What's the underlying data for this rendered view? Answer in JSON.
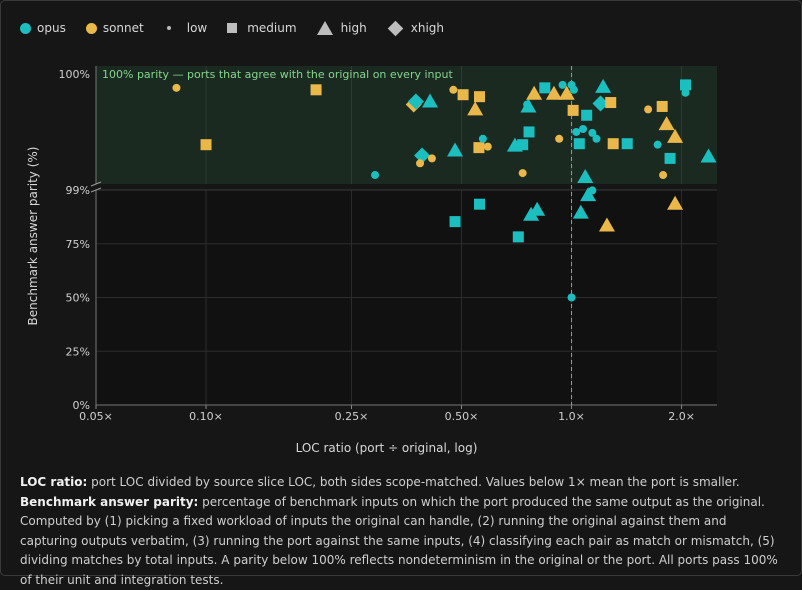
{
  "legend": {
    "items": [
      {
        "label": "opus",
        "icon": "circle-icon",
        "color": "#1bbfbf"
      },
      {
        "label": "sonnet",
        "icon": "circle-icon",
        "color": "#eab84a"
      },
      {
        "label": "low",
        "icon": "small-dot-icon"
      },
      {
        "label": "medium",
        "icon": "square-icon"
      },
      {
        "label": "high",
        "icon": "triangle-icon"
      },
      {
        "label": "xhigh",
        "icon": "diamond-icon"
      }
    ]
  },
  "caption": {
    "loc_term": "LOC ratio:",
    "loc_text": "port LOC divided by source slice LOC, both sides scope-matched. Values below 1× mean the port is smaller.",
    "parity_term": "Benchmark answer parity:",
    "parity_text": "percentage of benchmark inputs on which the port produced the same output as the original. Computed by (1) picking a fixed workload of inputs the original can handle, (2) running the original against them and capturing outputs verbatim, (3) running the port against the same inputs, (4) classifying each pair as match or mismatch, (5) dividing matches by total inputs. A parity below 100% reflects nondeterminism in the original or the port. All ports pass 100% of their unit and integration tests."
  },
  "chart_data": {
    "type": "scatter",
    "xlabel": "LOC ratio (port ÷ original, log)",
    "ylabel": "Benchmark answer parity (%)",
    "x_scale": "log",
    "xlim": [
      0.05,
      2.5
    ],
    "x_ticks": [
      0.05,
      0.1,
      0.25,
      0.5,
      1.0,
      2.0
    ],
    "x_tick_labels": [
      "0.05×",
      "0.10×",
      "0.25×",
      "0.50×",
      "1.0×",
      "2.0×"
    ],
    "y_ticks_lower": [
      "0%",
      "25%",
      "50%",
      "75%",
      "99%"
    ],
    "y_ticks_upper": [
      "100%"
    ],
    "reference_x": 1.0,
    "band_label": "100% parity — ports that agree with the original on every input",
    "grid": true,
    "colors": {
      "opus": "#1bbfbf",
      "sonnet": "#eab84a"
    },
    "parity_100_points": [
      {
        "model": "sonnet",
        "effort": "low",
        "x": 0.083,
        "jitter": 0.08
      },
      {
        "model": "sonnet",
        "effort": "medium",
        "x": 0.2,
        "jitter": 0.1
      },
      {
        "model": "sonnet",
        "effort": "medium",
        "x": 0.1,
        "jitter": 0.66
      },
      {
        "model": "opus",
        "effort": "low",
        "x": 0.29,
        "jitter": 0.97
      },
      {
        "model": "sonnet",
        "effort": "xhigh",
        "x": 0.37,
        "jitter": 0.25
      },
      {
        "model": "opus",
        "effort": "xhigh",
        "x": 0.375,
        "jitter": 0.22
      },
      {
        "model": "opus",
        "effort": "high",
        "x": 0.41,
        "jitter": 0.22
      },
      {
        "model": "opus",
        "effort": "xhigh",
        "x": 0.39,
        "jitter": 0.77
      },
      {
        "model": "sonnet",
        "effort": "low",
        "x": 0.385,
        "jitter": 0.85
      },
      {
        "model": "sonnet",
        "effort": "low",
        "x": 0.415,
        "jitter": 0.8
      },
      {
        "model": "opus",
        "effort": "high",
        "x": 0.48,
        "jitter": 0.72
      },
      {
        "model": "sonnet",
        "effort": "low",
        "x": 0.475,
        "jitter": 0.1
      },
      {
        "model": "sonnet",
        "effort": "medium",
        "x": 0.505,
        "jitter": 0.15
      },
      {
        "model": "sonnet",
        "effort": "medium",
        "x": 0.56,
        "jitter": 0.17
      },
      {
        "model": "sonnet",
        "effort": "high",
        "x": 0.545,
        "jitter": 0.3
      },
      {
        "model": "sonnet",
        "effort": "medium",
        "x": 0.558,
        "jitter": 0.69
      },
      {
        "model": "opus",
        "effort": "low",
        "x": 0.572,
        "jitter": 0.6
      },
      {
        "model": "sonnet",
        "effort": "low",
        "x": 0.59,
        "jitter": 0.68
      },
      {
        "model": "opus",
        "effort": "high",
        "x": 0.7,
        "jitter": 0.67
      },
      {
        "model": "opus",
        "effort": "medium",
        "x": 0.735,
        "jitter": 0.66
      },
      {
        "model": "opus",
        "effort": "medium",
        "x": 0.765,
        "jitter": 0.53
      },
      {
        "model": "opus",
        "effort": "high",
        "x": 0.762,
        "jitter": 0.27
      },
      {
        "model": "opus",
        "effort": "low",
        "x": 0.756,
        "jitter": 0.25
      },
      {
        "model": "sonnet",
        "effort": "low",
        "x": 0.735,
        "jitter": 0.95
      },
      {
        "model": "sonnet",
        "effort": "high",
        "x": 0.79,
        "jitter": 0.14
      },
      {
        "model": "opus",
        "effort": "medium",
        "x": 0.845,
        "jitter": 0.08
      },
      {
        "model": "sonnet",
        "effort": "high",
        "x": 0.895,
        "jitter": 0.14
      },
      {
        "model": "opus",
        "effort": "low",
        "x": 0.945,
        "jitter": 0.05
      },
      {
        "model": "sonnet",
        "effort": "high",
        "x": 0.97,
        "jitter": 0.14
      },
      {
        "model": "sonnet",
        "effort": "low",
        "x": 0.925,
        "jitter": 0.6
      },
      {
        "model": "opus",
        "effort": "low",
        "x": 1.0,
        "jitter": 0.05
      },
      {
        "model": "sonnet",
        "effort": "medium",
        "x": 1.01,
        "jitter": 0.31
      },
      {
        "model": "opus",
        "effort": "low",
        "x": 1.015,
        "jitter": 0.1
      },
      {
        "model": "opus",
        "effort": "low",
        "x": 1.03,
        "jitter": 0.53
      },
      {
        "model": "opus",
        "effort": "low",
        "x": 1.075,
        "jitter": 0.5
      },
      {
        "model": "opus",
        "effort": "medium",
        "x": 1.05,
        "jitter": 0.65
      },
      {
        "model": "opus",
        "effort": "medium",
        "x": 1.1,
        "jitter": 0.36
      },
      {
        "model": "opus",
        "effort": "high",
        "x": 1.09,
        "jitter": 0.99
      },
      {
        "model": "opus",
        "effort": "low",
        "x": 1.14,
        "jitter": 0.54
      },
      {
        "model": "opus",
        "effort": "xhigh",
        "x": 1.2,
        "jitter": 0.24
      },
      {
        "model": "opus",
        "effort": "high",
        "x": 1.22,
        "jitter": 0.07
      },
      {
        "model": "sonnet",
        "effort": "medium",
        "x": 1.28,
        "jitter": 0.23
      },
      {
        "model": "opus",
        "effort": "low",
        "x": 1.17,
        "jitter": 0.6
      },
      {
        "model": "sonnet",
        "effort": "medium",
        "x": 1.3,
        "jitter": 0.65
      },
      {
        "model": "opus",
        "effort": "medium",
        "x": 1.42,
        "jitter": 0.65
      },
      {
        "model": "sonnet",
        "effort": "low",
        "x": 1.62,
        "jitter": 0.3
      },
      {
        "model": "sonnet",
        "effort": "medium",
        "x": 1.77,
        "jitter": 0.27
      },
      {
        "model": "opus",
        "effort": "low",
        "x": 1.72,
        "jitter": 0.66
      },
      {
        "model": "sonnet",
        "effort": "high",
        "x": 1.82,
        "jitter": 0.45
      },
      {
        "model": "sonnet",
        "effort": "high",
        "x": 1.92,
        "jitter": 0.58
      },
      {
        "model": "opus",
        "effort": "medium",
        "x": 1.86,
        "jitter": 0.8
      },
      {
        "model": "sonnet",
        "effort": "low",
        "x": 1.78,
        "jitter": 0.97
      },
      {
        "model": "opus",
        "effort": "medium",
        "x": 2.05,
        "jitter": 0.05
      },
      {
        "model": "opus",
        "effort": "low",
        "x": 2.05,
        "jitter": 0.13
      },
      {
        "model": "opus",
        "effort": "high",
        "x": 2.37,
        "jitter": 0.78
      }
    ],
    "points": [
      {
        "model": "opus",
        "effort": "medium",
        "x": 0.48,
        "y": 85.3
      },
      {
        "model": "opus",
        "effort": "medium",
        "x": 0.56,
        "y": 93.4
      },
      {
        "model": "opus",
        "effort": "medium",
        "x": 0.715,
        "y": 78.2
      },
      {
        "model": "opus",
        "effort": "high",
        "x": 0.775,
        "y": 88.5
      },
      {
        "model": "opus",
        "effort": "high",
        "x": 0.805,
        "y": 90.8
      },
      {
        "model": "opus",
        "effort": "low",
        "x": 1.0,
        "y": 50.0
      },
      {
        "model": "opus",
        "effort": "high",
        "x": 1.06,
        "y": 89.5
      },
      {
        "model": "opus",
        "effort": "high",
        "x": 1.11,
        "y": 97.6
      },
      {
        "model": "opus",
        "effort": "low",
        "x": 1.14,
        "y": 99.8
      },
      {
        "model": "sonnet",
        "effort": "high",
        "x": 1.25,
        "y": 83.5
      },
      {
        "model": "sonnet",
        "effort": "high",
        "x": 1.92,
        "y": 93.6
      }
    ]
  }
}
